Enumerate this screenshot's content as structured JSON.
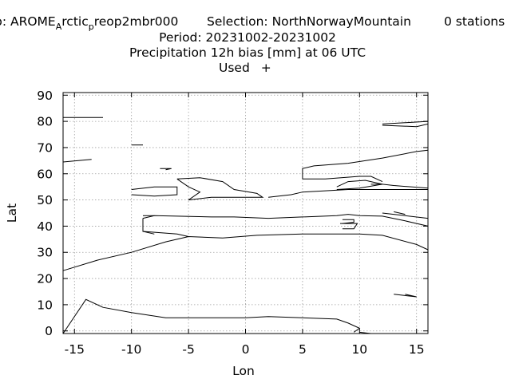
{
  "title": {
    "exp_prefix": "p: AROME",
    "exp_sub1": "A",
    "exp_mid": "rctic",
    "exp_sub2": "p",
    "exp_suffix": "reop2mbr000",
    "selection": "Selection: NorthNorwayMountain",
    "stations": "0 stations",
    "period": "Period: 20231002-20231002",
    "parameter": "Precipitation 12h bias [mm] at  06 UTC",
    "used": "Used",
    "used_marker": "+"
  },
  "chart_data": {
    "type": "scatter",
    "title": "Precipitation 12h bias [mm] at  06 UTC",
    "xlabel": "Lon",
    "ylabel": "Lat",
    "xlim": [
      -16,
      16
    ],
    "ylim": [
      -1,
      91
    ],
    "x_ticks": [
      -15,
      -10,
      -5,
      0,
      5,
      10,
      15
    ],
    "x_tick_labels": [
      "-15",
      "-10",
      "-5",
      "0",
      "5",
      "10",
      "15"
    ],
    "y_ticks": [
      0,
      10,
      20,
      30,
      40,
      50,
      60,
      70,
      80,
      90
    ],
    "y_tick_labels": [
      "0",
      "10",
      "20",
      "30",
      "40",
      "50",
      "60",
      "70",
      "80",
      "90"
    ],
    "grid": true,
    "legend": [
      {
        "label": "Used",
        "marker": "+"
      }
    ],
    "series": [],
    "background": "coastline map",
    "coastlines": [
      [
        [
          -16,
          -1
        ],
        [
          -14,
          12
        ],
        [
          -12.5,
          9
        ],
        [
          -10,
          7
        ],
        [
          -7,
          5
        ],
        [
          -3,
          5
        ],
        [
          0,
          5
        ],
        [
          2,
          5.5
        ],
        [
          5,
          5
        ],
        [
          8,
          4.5
        ],
        [
          9,
          3
        ],
        [
          10,
          1
        ],
        [
          9.5,
          -0.5
        ]
      ],
      [
        [
          -16,
          23
        ],
        [
          -13,
          27
        ],
        [
          -10,
          30
        ],
        [
          -7,
          34
        ],
        [
          -5,
          36
        ],
        [
          -2,
          35.5
        ],
        [
          1,
          36.5
        ],
        [
          5,
          37
        ],
        [
          8,
          37
        ],
        [
          10,
          37
        ],
        [
          12,
          36.5
        ],
        [
          15,
          33
        ],
        [
          16,
          31
        ]
      ],
      [
        [
          -16,
          81.5
        ],
        [
          -12.5,
          81.5
        ]
      ],
      [
        [
          -16,
          64.5
        ],
        [
          -13.5,
          65.5
        ]
      ],
      [
        [
          -10,
          71
        ],
        [
          -9,
          71
        ]
      ],
      [
        [
          -7.5,
          62
        ],
        [
          -6.5,
          62
        ],
        [
          -7,
          61.5
        ]
      ],
      [
        [
          -10,
          54
        ],
        [
          -8,
          55
        ],
        [
          -6,
          55
        ],
        [
          -6,
          52
        ],
        [
          -8,
          51.5
        ],
        [
          -10,
          52
        ]
      ],
      [
        [
          -6,
          58
        ],
        [
          -4,
          58.5
        ],
        [
          -2,
          57
        ],
        [
          -1,
          54
        ],
        [
          1,
          52.5
        ],
        [
          1.5,
          51
        ],
        [
          -3,
          51
        ],
        [
          -5,
          50
        ],
        [
          -4,
          53
        ],
        [
          -5,
          55
        ],
        [
          -6,
          58
        ]
      ],
      [
        [
          -9,
          43
        ],
        [
          -8,
          44
        ],
        [
          -3,
          43.5
        ],
        [
          -1,
          43.5
        ],
        [
          2,
          43
        ],
        [
          5,
          43.5
        ],
        [
          8,
          44
        ],
        [
          9,
          44.5
        ],
        [
          10,
          44
        ],
        [
          12,
          43.8
        ],
        [
          14,
          42
        ],
        [
          16,
          40
        ]
      ],
      [
        [
          -9,
          43
        ],
        [
          -9,
          38
        ],
        [
          -6,
          37
        ],
        [
          -5,
          36
        ]
      ],
      [
        [
          -9,
          43
        ],
        [
          -9,
          38
        ],
        [
          -8,
          37
        ]
      ],
      [
        [
          5,
          58
        ],
        [
          5,
          62
        ],
        [
          6,
          63
        ],
        [
          9,
          64
        ],
        [
          12,
          66
        ],
        [
          15,
          68.5
        ],
        [
          16,
          69
        ]
      ],
      [
        [
          5,
          58
        ],
        [
          7,
          58
        ],
        [
          10,
          59
        ],
        [
          11,
          59
        ],
        [
          12,
          57
        ]
      ],
      [
        [
          8,
          55
        ],
        [
          9,
          57
        ],
        [
          10.5,
          57.5
        ],
        [
          12,
          56
        ],
        [
          10,
          54.5
        ],
        [
          8,
          54
        ]
      ],
      [
        [
          11,
          56
        ],
        [
          12,
          56
        ],
        [
          13,
          55.5
        ],
        [
          16,
          54.5
        ]
      ],
      [
        [
          2,
          51
        ],
        [
          4,
          52
        ],
        [
          5,
          53
        ],
        [
          7,
          53.5
        ],
        [
          9,
          54
        ],
        [
          11,
          54
        ],
        [
          13,
          54
        ],
        [
          16,
          54
        ]
      ],
      [
        [
          8.5,
          42.5
        ],
        [
          9.5,
          42.5
        ],
        [
          9.5,
          41.5
        ],
        [
          8.5,
          41
        ]
      ],
      [
        [
          8.3,
          41
        ],
        [
          9.8,
          41
        ],
        [
          9.5,
          39
        ],
        [
          8.5,
          39
        ]
      ],
      [
        [
          -9,
          44
        ],
        [
          -8,
          44
        ]
      ],
      [
        [
          12,
          79
        ],
        [
          14,
          79.5
        ],
        [
          16,
          80
        ],
        [
          16,
          79
        ],
        [
          15,
          78
        ],
        [
          12,
          78.5
        ]
      ],
      [
        [
          12,
          45
        ],
        [
          14,
          44
        ],
        [
          16,
          43
        ]
      ],
      [
        [
          13,
          45.5
        ],
        [
          14,
          44.5
        ]
      ],
      [
        [
          10,
          -0.5
        ],
        [
          11,
          -1
        ]
      ],
      [
        [
          13,
          14
        ],
        [
          14,
          13.5
        ],
        [
          15,
          13
        ],
        [
          14,
          14
        ]
      ]
    ]
  }
}
